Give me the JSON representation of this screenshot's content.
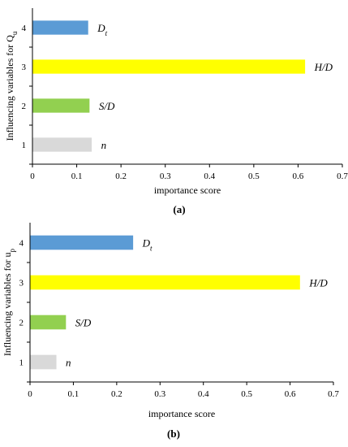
{
  "chart_data": [
    {
      "type": "bar",
      "orientation": "horizontal",
      "panel_caption": "(a)",
      "ylabel": "Influencing variables for Q",
      "ylabel_sub": "u",
      "xlabel": "importance score",
      "xlim": [
        0,
        0.7
      ],
      "xticks": [
        "0",
        "0.1",
        "0.2",
        "0.3",
        "0.4",
        "0.5",
        "0.6",
        "0.7"
      ],
      "categories": [
        "1",
        "2",
        "3",
        "4"
      ],
      "values": [
        0.133,
        0.128,
        0.615,
        0.125
      ],
      "bar_labels": [
        {
          "main": "n",
          "sub": ""
        },
        {
          "main": "S/D",
          "sub": ""
        },
        {
          "main": "H/D",
          "sub": ""
        },
        {
          "main": "D",
          "sub": "t"
        }
      ],
      "colors": [
        "#d9d9d9",
        "#92d050",
        "#ffff00",
        "#5b9bd5"
      ],
      "grid": false
    },
    {
      "type": "bar",
      "orientation": "horizontal",
      "panel_caption": "(b)",
      "ylabel": "Influencing variables for u",
      "ylabel_sub": "p",
      "xlabel": "importance score",
      "xlim": [
        0,
        0.7
      ],
      "xticks": [
        "0",
        "0.1",
        "0.2",
        "0.3",
        "0.4",
        "0.5",
        "0.6",
        "0.7"
      ],
      "categories": [
        "1",
        "2",
        "3",
        "4"
      ],
      "values": [
        0.06,
        0.082,
        0.622,
        0.237
      ],
      "bar_labels": [
        {
          "main": "n",
          "sub": ""
        },
        {
          "main": "S/D",
          "sub": ""
        },
        {
          "main": "H/D",
          "sub": ""
        },
        {
          "main": "D",
          "sub": "t"
        }
      ],
      "colors": [
        "#d9d9d9",
        "#92d050",
        "#ffff00",
        "#5b9bd5"
      ],
      "grid": false
    }
  ]
}
